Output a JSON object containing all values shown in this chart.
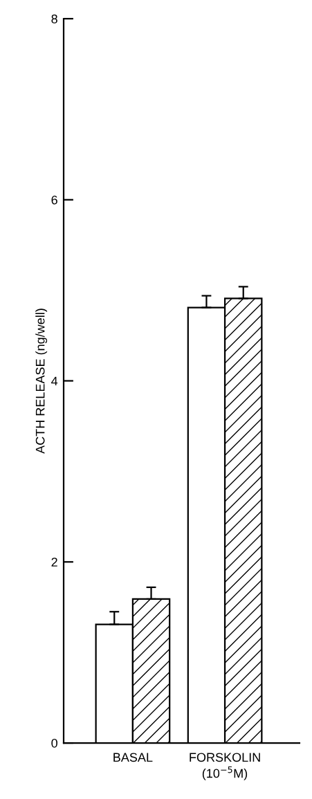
{
  "chart_data": {
    "type": "bar",
    "ylabel": "ACTH RELEASE (ng/well)",
    "categories": [
      "BASAL",
      "FORSKOLIN\n(10$^{−5}$M)"
    ],
    "series": [
      {
        "color": "#ffffff",
        "values": [
          1.31,
          4.81
        ],
        "errors": [
          0.14,
          0.13
        ]
      },
      {
        "color": "#000000",
        "values": [
          1.59,
          4.91
        ],
        "errors": [
          0.13,
          0.13
        ]
      }
    ],
    "ylim": [
      0,
      8
    ],
    "yticks": [
      0,
      2,
      4,
      6,
      8
    ],
    "grid": false,
    "legend": false
  }
}
